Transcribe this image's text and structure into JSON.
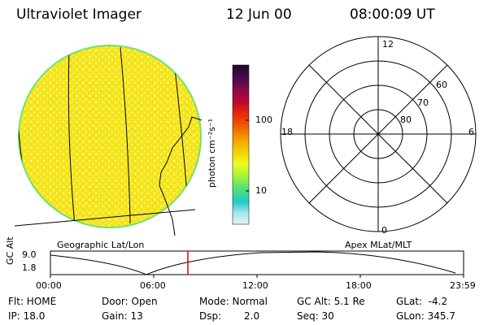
{
  "header": {
    "title": "Ultraviolet Imager",
    "date": "12 Jun 00",
    "time": "08:00:09 UT"
  },
  "colorbar": {
    "unit_label": "photon cm⁻²s⁻¹",
    "ticks": [
      "100",
      "10"
    ],
    "stops": [
      "#1a0a2a",
      "#4b0a4e",
      "#8a0a4a",
      "#c40a2a",
      "#e8300a",
      "#f06a00",
      "#f7a800",
      "#f2d400",
      "#eaff20",
      "#a6f23a",
      "#4ee07a",
      "#24c8c8",
      "#a8e4ee",
      "#e6f2f6"
    ]
  },
  "globe": {
    "caption": "Geographic Lat/Lon",
    "disk_color": "#f5e61e",
    "rim_color": "#6ee36e"
  },
  "polar": {
    "caption": "Apex MLat/MLT",
    "mlt_labels": [
      "12",
      "18",
      "6",
      "0"
    ],
    "mlat_labels": [
      "60",
      "70",
      "80"
    ]
  },
  "altitude_plot": {
    "axis_title": "GC Alt",
    "y_ticks": [
      "9.0",
      "1.8"
    ],
    "x_ticks": [
      "00:00",
      "06:00",
      "12:00",
      "18:00",
      "23:59"
    ],
    "marker_time": "08:00",
    "marker_color": "#e00000"
  },
  "status": {
    "flt": "Flt: HOME",
    "ip": "IP: 18.0",
    "door": "Door: Open",
    "gain": "Gain: 13",
    "mode": "Mode: Normal",
    "dsp_label": "Dsp:",
    "dsp_value": "2.0",
    "gc_alt": "GC Alt: 5.1 Re",
    "seq": "Seq: 30",
    "glat": "GLat:  -4.2",
    "glon": "GLon: 345.7"
  }
}
